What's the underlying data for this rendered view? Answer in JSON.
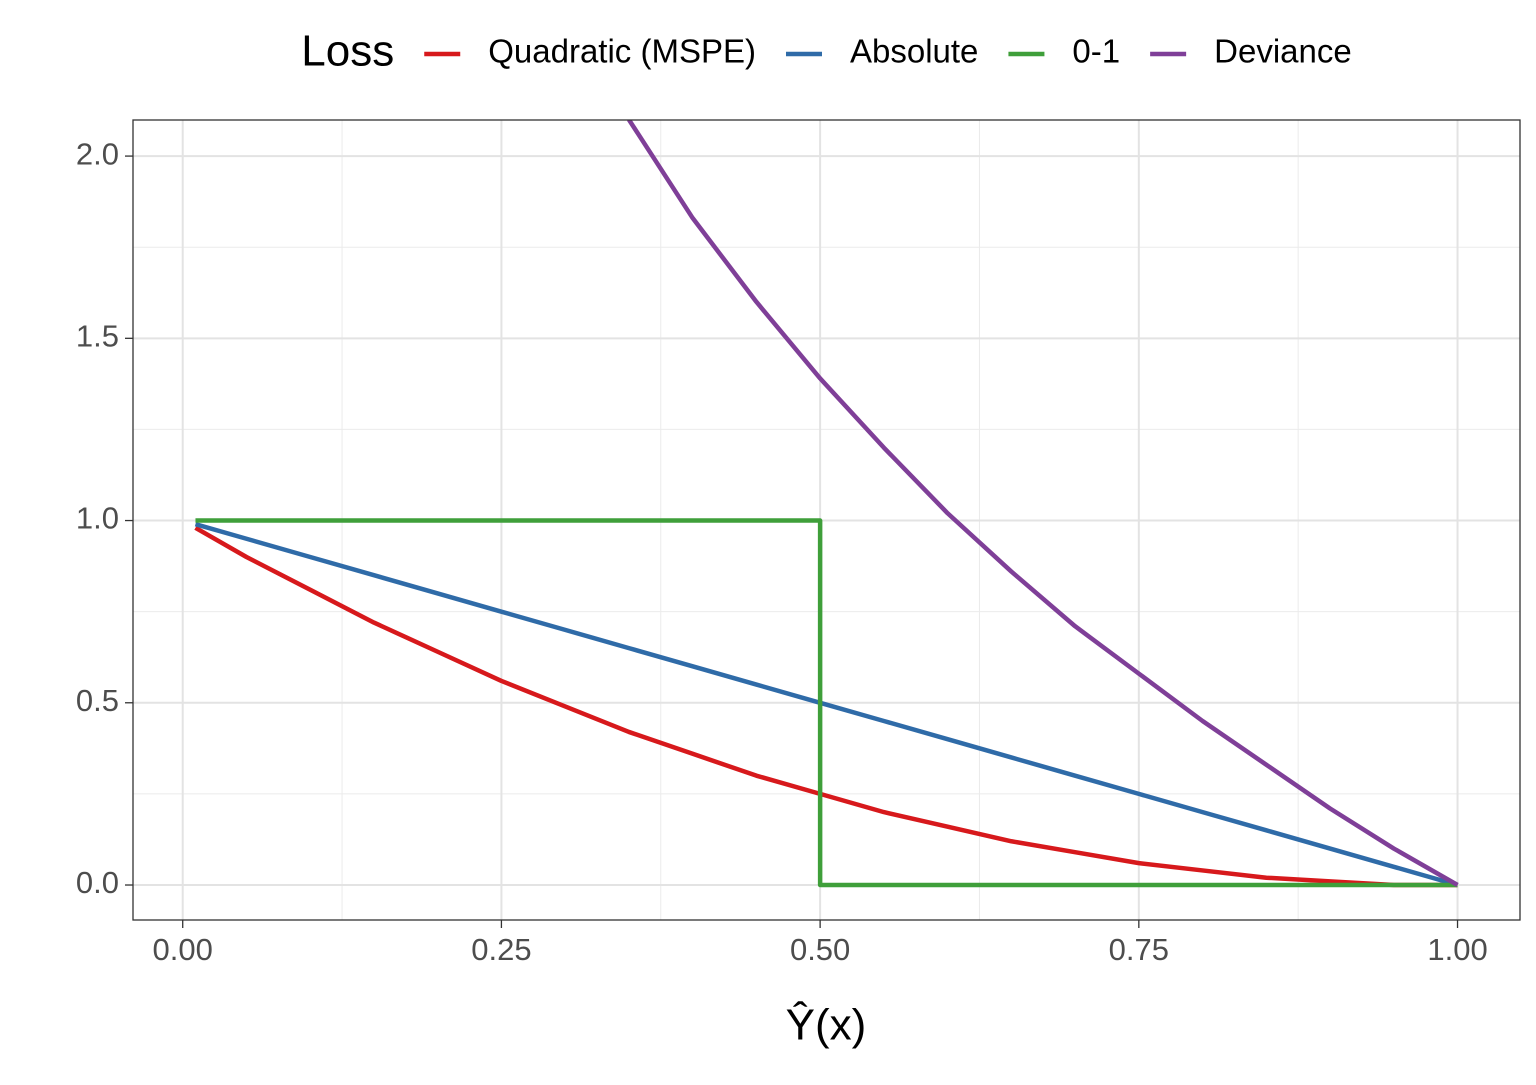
{
  "chart_data": {
    "type": "line",
    "x_label": "Ŷ(x)",
    "legend_title": "Loss",
    "legend_position": "top",
    "grid": true,
    "xlim": [
      -0.039,
      1.049
    ],
    "ylim": [
      -0.096,
      2.099
    ],
    "xticks": [
      {
        "value": 0,
        "label": "0.00"
      },
      0.25,
      {
        "value": 0.5,
        "label": "0.50"
      },
      0.75,
      {
        "value": 1,
        "label": "1.00"
      }
    ],
    "yticks": [
      {
        "value": 0,
        "label": "0.0"
      },
      0.5,
      {
        "value": 1,
        "label": "1.0"
      },
      1.5,
      {
        "value": 2,
        "label": "2.0"
      }
    ],
    "series": [
      {
        "name": "Quadratic (MSPE)",
        "color": "#d7191c",
        "x": [
          0.01,
          0.05,
          0.1,
          0.15,
          0.2,
          0.25,
          0.3,
          0.35,
          0.4,
          0.45,
          0.5,
          0.55,
          0.6,
          0.65,
          0.7,
          0.75,
          0.8,
          0.85,
          0.9,
          0.95,
          1.0
        ],
        "values": [
          0.98,
          0.9,
          0.81,
          0.72,
          0.64,
          0.56,
          0.49,
          0.42,
          0.36,
          0.3,
          0.25,
          0.2,
          0.16,
          0.12,
          0.09,
          0.06,
          0.04,
          0.02,
          0.01,
          0,
          0
        ]
      },
      {
        "name": "Absolute",
        "color": "#2f6ba8",
        "x": [
          0.01,
          0.05,
          0.1,
          0.15,
          0.2,
          0.25,
          0.3,
          0.35,
          0.4,
          0.45,
          0.5,
          0.55,
          0.6,
          0.65,
          0.7,
          0.75,
          0.8,
          0.85,
          0.9,
          0.95,
          1.0
        ],
        "values": [
          0.99,
          0.95,
          0.9,
          0.85,
          0.8,
          0.75,
          0.7,
          0.65,
          0.6,
          0.55,
          0.5,
          0.45,
          0.4,
          0.35,
          0.3,
          0.25,
          0.2,
          0.15,
          0.1,
          0.05,
          0
        ]
      },
      {
        "name": "0-1",
        "color": "#3f9f3a",
        "x": [
          0.01,
          0.5,
          0.5,
          1.0
        ],
        "values": [
          1,
          1,
          0,
          0
        ]
      },
      {
        "name": "Deviance",
        "color": "#7f3f98",
        "x": [
          0.35,
          0.4,
          0.45,
          0.5,
          0.55,
          0.6,
          0.65,
          0.7,
          0.75,
          0.8,
          0.85,
          0.9,
          0.95,
          1.0
        ],
        "values": [
          2.1,
          1.83,
          1.6,
          1.39,
          1.2,
          1.02,
          0.86,
          0.71,
          0.58,
          0.45,
          0.33,
          0.21,
          0.1,
          0
        ]
      }
    ]
  }
}
